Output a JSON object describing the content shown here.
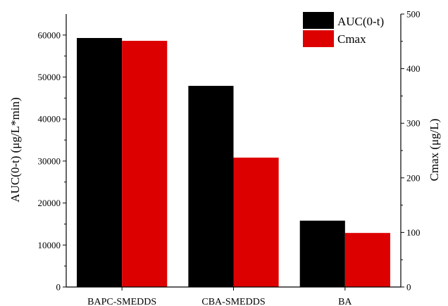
{
  "chart_data": {
    "type": "bar",
    "categories": [
      "BAPC-SMEDDS",
      "CBA-SMEDDS",
      "BA"
    ],
    "series": [
      {
        "name": "AUC(0-t)",
        "axis": "left",
        "color": "#000000",
        "values": [
          59300,
          47900,
          15800
        ]
      },
      {
        "name": "Cmax",
        "axis": "right",
        "color": "#dd0000",
        "values": [
          451,
          237,
          99
        ]
      }
    ],
    "ylabel_left": "AUC(0-t) (μg/L*min)",
    "ylabel_right": "Cmax (μg/L)",
    "ylim_left": [
      0,
      65000
    ],
    "ylim_right": [
      0,
      500
    ],
    "yticks_left": [
      0,
      10000,
      20000,
      30000,
      40000,
      50000,
      60000
    ],
    "yticks_right": [
      0,
      100,
      200,
      300,
      400,
      500
    ],
    "legend_position": "top-right",
    "grid": false
  }
}
